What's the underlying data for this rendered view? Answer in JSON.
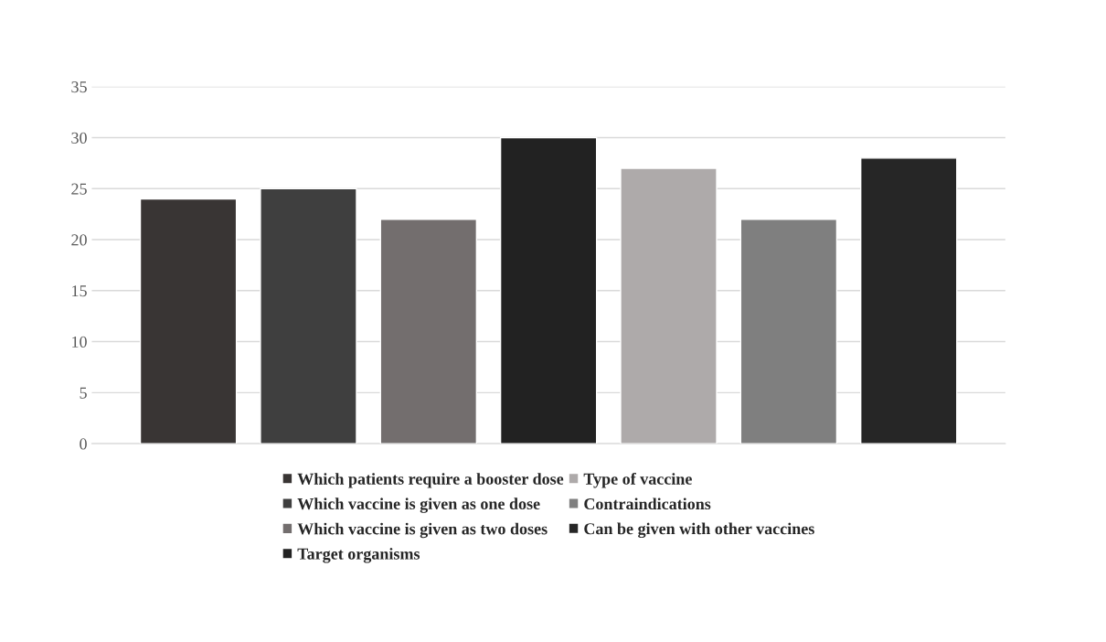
{
  "chart_data": {
    "type": "bar",
    "categories": [
      null
    ],
    "series": [
      {
        "name": "Which patients require a booster dose",
        "color": "#393534",
        "values": [
          24
        ]
      },
      {
        "name": "Which vaccine is given as one dose",
        "color": "#3f3f3f",
        "values": [
          25
        ]
      },
      {
        "name": "Which vaccine is given as two doses",
        "color": "#736e6e",
        "values": [
          22
        ]
      },
      {
        "name": "Target organisms",
        "color": "#222222",
        "values": [
          30
        ]
      },
      {
        "name": "Type of vaccine",
        "color": "#aeaaaa",
        "values": [
          27
        ]
      },
      {
        "name": "Contraindications",
        "color": "#7f7f7f",
        "values": [
          22
        ]
      },
      {
        "name": "Can be given with other vaccines",
        "color": "#262626",
        "values": [
          28
        ]
      }
    ],
    "ylim": [
      0,
      35
    ],
    "yticks": [
      0,
      5,
      10,
      15,
      20,
      25,
      30,
      35
    ],
    "grid": "y",
    "legend": "bottom"
  }
}
